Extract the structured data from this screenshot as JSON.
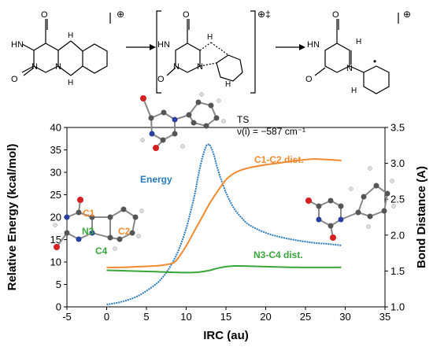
{
  "scheme": {
    "reactant": {
      "atom_labels": [
        "O",
        "HN",
        "O",
        "N",
        "N",
        "H",
        "H",
        "•"
      ],
      "charge": "⊕"
    },
    "transition_state": {
      "atom_labels": [
        "O",
        "HN",
        "O",
        "N",
        "N",
        "H",
        "H",
        "•"
      ],
      "charge": "⊕‡"
    },
    "product": {
      "atom_labels": [
        "O",
        "HN",
        "O",
        "N",
        "H",
        "H",
        "•"
      ],
      "charge": "⊕"
    }
  },
  "ts_annotation": {
    "line1": "TS",
    "line2": "ν(i) = −587 cm⁻¹"
  },
  "atom_labels_3d": {
    "c1": "C1",
    "c2": "C2",
    "n3": "N3",
    "c4": "C4"
  },
  "colors": {
    "energy": "#2a7ac0",
    "c1c2": "#f28a30",
    "n3c4": "#3aa63a",
    "oxygen": "#d42020",
    "nitrogen": "#2a3fa0",
    "carbon": "#555555",
    "hydrogen": "#e6e6e6"
  },
  "chart_data": {
    "type": "line",
    "xlabel": "IRC (au)",
    "ylabel": "Relative Energy (kcal/mol)",
    "y2label": "Bond Distance (A)",
    "xlim": [
      -5,
      35
    ],
    "ylim": [
      0,
      40
    ],
    "y2lim": [
      1.0,
      3.5
    ],
    "x_ticks": [
      "-5",
      "0",
      "5",
      "10",
      "15",
      "20",
      "25",
      "30",
      "35"
    ],
    "y_ticks": [
      "0",
      "5",
      "10",
      "15",
      "20",
      "25",
      "30",
      "35",
      "40"
    ],
    "y2_ticks": [
      "1.0",
      "1.5",
      "2.0",
      "2.5",
      "3.0",
      "3.5"
    ],
    "series": [
      {
        "name": "Energy",
        "axis": "left",
        "x": [
          0,
          2,
          4,
          6,
          7,
          8,
          9,
          10,
          11,
          11.5,
          12,
          12.5,
          12.8,
          13,
          13.5,
          14,
          15,
          16,
          17,
          18,
          20,
          22,
          24,
          26,
          28,
          29.5
        ],
        "y": [
          0.5,
          1.2,
          2.5,
          4.8,
          6.5,
          9.0,
          12.5,
          17.5,
          24.5,
          29.0,
          33.0,
          35.8,
          36.2,
          36.0,
          33.8,
          30.5,
          25.5,
          22.0,
          19.8,
          18.2,
          16.5,
          15.5,
          14.8,
          14.3,
          14.0,
          13.7
        ]
      },
      {
        "name": "C1-C2 dist.",
        "axis": "right",
        "x": [
          0,
          2,
          4,
          6,
          7,
          8,
          8.5,
          9,
          10,
          11,
          12,
          13,
          14,
          15,
          16,
          17,
          18,
          20,
          22,
          24,
          26,
          28,
          29.5
        ],
        "y": [
          1.55,
          1.55,
          1.56,
          1.57,
          1.58,
          1.6,
          1.62,
          1.68,
          1.85,
          2.05,
          2.25,
          2.45,
          2.62,
          2.77,
          2.86,
          2.91,
          2.94,
          2.98,
          3.01,
          3.04,
          3.06,
          3.05,
          3.04
        ]
      },
      {
        "name": "N3-C4 dist.",
        "axis": "right",
        "x": [
          0,
          3,
          6,
          9,
          11,
          12,
          13,
          14,
          15,
          16,
          17,
          20,
          24,
          29.5
        ],
        "y": [
          1.51,
          1.5,
          1.49,
          1.48,
          1.48,
          1.49,
          1.51,
          1.54,
          1.56,
          1.57,
          1.57,
          1.56,
          1.55,
          1.55
        ]
      }
    ],
    "legend": "inline labels on curves",
    "grid": false
  }
}
